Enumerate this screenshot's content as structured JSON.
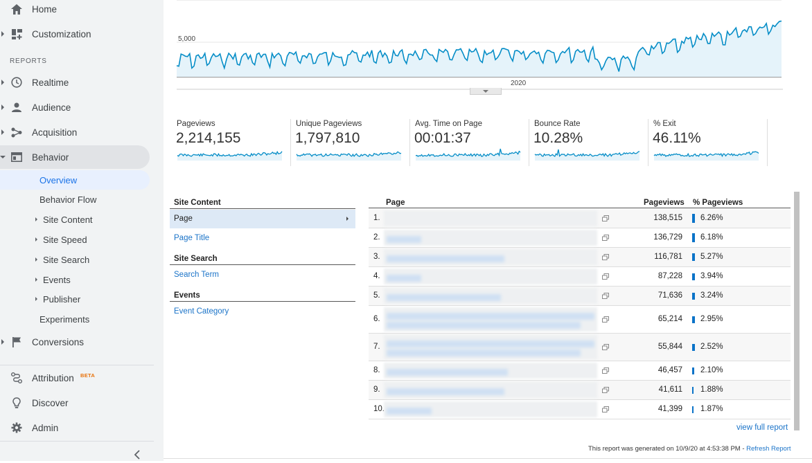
{
  "sidebar": {
    "home": "Home",
    "customization": "Customization",
    "reports_header": "REPORTS",
    "realtime": "Realtime",
    "audience": "Audience",
    "acquisition": "Acquisition",
    "behavior": "Behavior",
    "behavior_sub": [
      "Overview",
      "Behavior Flow",
      "Site Content",
      "Site Speed",
      "Site Search",
      "Events",
      "Publisher",
      "Experiments"
    ],
    "conversions": "Conversions",
    "attribution": "Attribution",
    "beta": "BETA",
    "discover": "Discover",
    "admin": "Admin",
    "collapse_icon": "chevron-left-icon"
  },
  "chart": {
    "y_tick": "5,000",
    "x_tick": "2020",
    "line_color": "#058dc7",
    "fill_color": "#e5f3fa"
  },
  "metrics": [
    {
      "label": "Pageviews",
      "value": "2,214,155"
    },
    {
      "label": "Unique Pageviews",
      "value": "1,797,810"
    },
    {
      "label": "Avg. Time on Page",
      "value": "00:01:37"
    },
    {
      "label": "Bounce Rate",
      "value": "10.28%"
    },
    {
      "label": "% Exit",
      "value": "46.11%"
    }
  ],
  "explorer": {
    "site_content_header": "Site Content",
    "page_selected": "Page",
    "page_title": "Page Title",
    "site_search_header": "Site Search",
    "search_term": "Search Term",
    "events_header": "Events",
    "event_category": "Event Category"
  },
  "table": {
    "col_page": "Page",
    "col_pageviews": "Pageviews",
    "col_pct": "% Pageviews",
    "rows": [
      {
        "idx": "1.",
        "pageviews": "138,515",
        "pct": "6.26%",
        "pct_value": 6.26
      },
      {
        "idx": "2.",
        "pageviews": "136,729",
        "pct": "6.18%",
        "pct_value": 6.18
      },
      {
        "idx": "3.",
        "pageviews": "116,781",
        "pct": "5.27%",
        "pct_value": 5.27
      },
      {
        "idx": "4.",
        "pageviews": "87,228",
        "pct": "3.94%",
        "pct_value": 3.94
      },
      {
        "idx": "5.",
        "pageviews": "71,636",
        "pct": "3.24%",
        "pct_value": 3.24
      },
      {
        "idx": "6.",
        "pageviews": "65,214",
        "pct": "2.95%",
        "pct_value": 2.95
      },
      {
        "idx": "7.",
        "pageviews": "55,844",
        "pct": "2.52%",
        "pct_value": 2.52
      },
      {
        "idx": "8.",
        "pageviews": "46,457",
        "pct": "2.10%",
        "pct_value": 2.1
      },
      {
        "idx": "9.",
        "pageviews": "41,611",
        "pct": "1.88%",
        "pct_value": 1.88
      },
      {
        "idx": "10.",
        "pageviews": "41,399",
        "pct": "1.87%",
        "pct_value": 1.87
      }
    ],
    "view_full_report": "view full report"
  },
  "footer": {
    "generated": "This report was generated on 10/9/20 at 4:53:38 PM - ",
    "refresh": "Refresh Report"
  }
}
